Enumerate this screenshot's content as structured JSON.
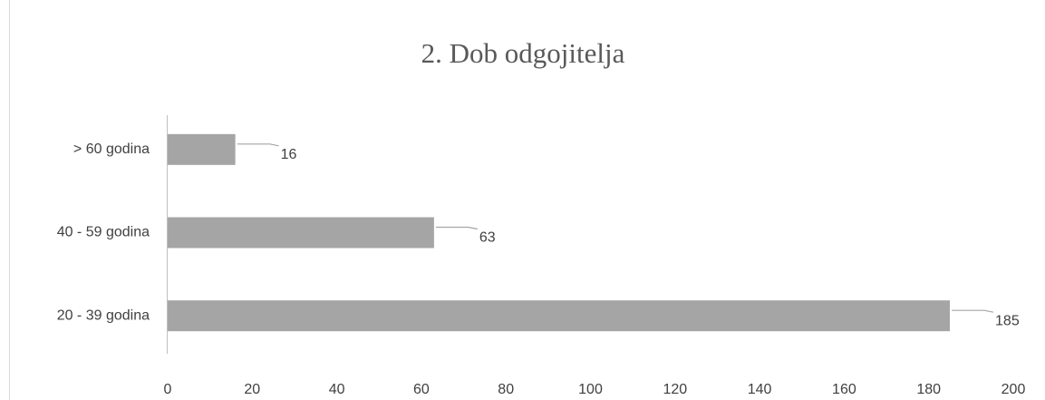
{
  "chart_data": {
    "type": "bar",
    "orientation": "horizontal",
    "title": "2. Dob odgojitelja",
    "categories": [
      "> 60 godina",
      "40 - 59 godina",
      "20 - 39 godina"
    ],
    "values": [
      16,
      63,
      185
    ],
    "color": "#a5a5a5",
    "xlim": [
      0,
      200
    ],
    "xticks": [
      0,
      20,
      40,
      60,
      80,
      100,
      120,
      140,
      160,
      180,
      200
    ],
    "grid": false
  }
}
